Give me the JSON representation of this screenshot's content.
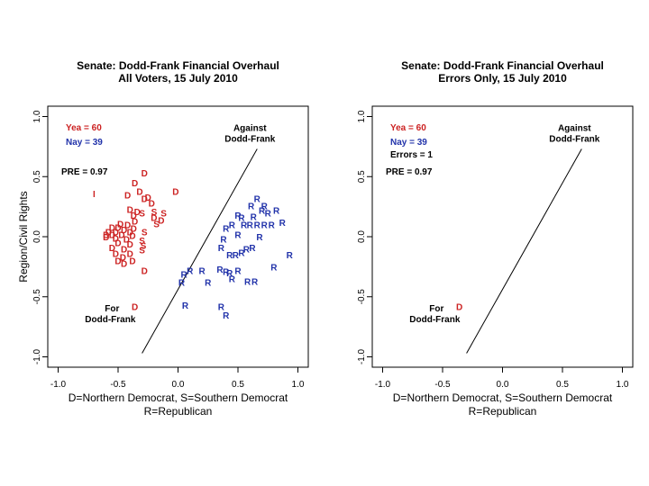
{
  "colors": {
    "dem": "#cc2222",
    "rep": "#2233aa",
    "ind": "#cc2222",
    "text": "#000000"
  },
  "chart_data": [
    {
      "type": "scatter",
      "title": "Senate: Dodd-Frank Financial Overhaul",
      "subtitle": "All Voters, 15 July 2010",
      "xlabel": "D=Northern Democrat, S=Southern Democrat",
      "xlabel2": "R=Republican",
      "ylabel": "Region/Civil Rights",
      "xlim": [
        -1.0,
        1.0
      ],
      "ylim": [
        -1.0,
        1.0
      ],
      "xticks": [
        "-1.0",
        "-0.5",
        "0.0",
        "0.5",
        "1.0"
      ],
      "yticks": [
        "-1.0",
        "-0.5",
        "0.0",
        "0.5",
        "1.0"
      ],
      "yea_text": "Yea =  60",
      "nay_text": "Nay =  39",
      "pre_text": "PRE =  0.97",
      "against_label": [
        "Against",
        "Dodd-Frank"
      ],
      "for_label": [
        "For",
        "Dodd-Frank"
      ],
      "cutline": [
        [
          -0.3,
          -0.97
        ],
        [
          0.66,
          0.73
        ]
      ],
      "points": [
        {
          "label": "I",
          "x": -0.7,
          "y": 0.36
        },
        {
          "label": "D",
          "x": -0.28,
          "y": 0.53
        },
        {
          "label": "D",
          "x": -0.36,
          "y": 0.45
        },
        {
          "label": "D",
          "x": -0.32,
          "y": 0.38
        },
        {
          "label": "D",
          "x": -0.42,
          "y": 0.35
        },
        {
          "label": "D",
          "x": -0.28,
          "y": 0.32
        },
        {
          "label": "D",
          "x": -0.25,
          "y": 0.33
        },
        {
          "label": "D",
          "x": -0.22,
          "y": 0.28
        },
        {
          "label": "D",
          "x": -0.02,
          "y": 0.38
        },
        {
          "label": "D",
          "x": -0.4,
          "y": 0.23
        },
        {
          "label": "D",
          "x": -0.34,
          "y": 0.21
        },
        {
          "label": "S",
          "x": -0.3,
          "y": 0.2
        },
        {
          "label": "S",
          "x": -0.2,
          "y": 0.21
        },
        {
          "label": "S",
          "x": -0.12,
          "y": 0.2
        },
        {
          "label": "D",
          "x": -0.37,
          "y": 0.18
        },
        {
          "label": "D",
          "x": -0.2,
          "y": 0.16
        },
        {
          "label": "D",
          "x": -0.14,
          "y": 0.14
        },
        {
          "label": "D",
          "x": -0.36,
          "y": 0.13
        },
        {
          "label": "S",
          "x": -0.18,
          "y": 0.11
        },
        {
          "label": "D",
          "x": -0.48,
          "y": 0.11
        },
        {
          "label": "D",
          "x": -0.42,
          "y": 0.1
        },
        {
          "label": "D",
          "x": -0.55,
          "y": 0.08
        },
        {
          "label": "D",
          "x": -0.5,
          "y": 0.08
        },
        {
          "label": "D",
          "x": -0.37,
          "y": 0.07
        },
        {
          "label": "D",
          "x": -0.45,
          "y": 0.06
        },
        {
          "label": "D",
          "x": -0.58,
          "y": 0.04
        },
        {
          "label": "D",
          "x": -0.52,
          "y": 0.04
        },
        {
          "label": "D",
          "x": -0.4,
          "y": 0.04
        },
        {
          "label": "S",
          "x": -0.28,
          "y": 0.04
        },
        {
          "label": "D",
          "x": -0.6,
          "y": 0.02
        },
        {
          "label": "D",
          "x": -0.55,
          "y": 0.02
        },
        {
          "label": "D",
          "x": -0.47,
          "y": 0.02
        },
        {
          "label": "D",
          "x": -0.38,
          "y": 0.01
        },
        {
          "label": "D",
          "x": -0.6,
          "y": 0.0
        },
        {
          "label": "D",
          "x": -0.52,
          "y": -0.01
        },
        {
          "label": "D",
          "x": -0.43,
          "y": -0.02
        },
        {
          "label": "S",
          "x": -0.3,
          "y": -0.03
        },
        {
          "label": "D",
          "x": -0.5,
          "y": -0.05
        },
        {
          "label": "D",
          "x": -0.4,
          "y": -0.06
        },
        {
          "label": "S",
          "x": -0.29,
          "y": -0.07
        },
        {
          "label": "D",
          "x": -0.55,
          "y": -0.09
        },
        {
          "label": "D",
          "x": -0.45,
          "y": -0.1
        },
        {
          "label": "S",
          "x": -0.3,
          "y": -0.11
        },
        {
          "label": "D",
          "x": -0.52,
          "y": -0.14
        },
        {
          "label": "D",
          "x": -0.4,
          "y": -0.14
        },
        {
          "label": "D",
          "x": -0.46,
          "y": -0.17
        },
        {
          "label": "D",
          "x": -0.5,
          "y": -0.2
        },
        {
          "label": "D",
          "x": -0.38,
          "y": -0.2
        },
        {
          "label": "D",
          "x": -0.45,
          "y": -0.22
        },
        {
          "label": "D",
          "x": -0.28,
          "y": -0.28
        },
        {
          "label": "D",
          "x": -0.36,
          "y": -0.58
        },
        {
          "label": "R",
          "x": 0.1,
          "y": -0.28
        },
        {
          "label": "R",
          "x": 0.05,
          "y": -0.31
        },
        {
          "label": "R",
          "x": 0.03,
          "y": -0.38
        },
        {
          "label": "R",
          "x": 0.2,
          "y": -0.28
        },
        {
          "label": "R",
          "x": 0.25,
          "y": -0.38
        },
        {
          "label": "R",
          "x": 0.06,
          "y": -0.57
        },
        {
          "label": "R",
          "x": 0.35,
          "y": -0.27
        },
        {
          "label": "R",
          "x": 0.4,
          "y": -0.29
        },
        {
          "label": "R",
          "x": 0.43,
          "y": -0.3
        },
        {
          "label": "R",
          "x": 0.45,
          "y": -0.35
        },
        {
          "label": "R",
          "x": 0.5,
          "y": -0.28
        },
        {
          "label": "R",
          "x": 0.58,
          "y": -0.37
        },
        {
          "label": "R",
          "x": 0.64,
          "y": -0.37
        },
        {
          "label": "R",
          "x": 0.8,
          "y": -0.25
        },
        {
          "label": "R",
          "x": 0.93,
          "y": -0.15
        },
        {
          "label": "R",
          "x": 0.36,
          "y": -0.58
        },
        {
          "label": "R",
          "x": 0.4,
          "y": -0.65
        },
        {
          "label": "R",
          "x": 0.36,
          "y": -0.09
        },
        {
          "label": "R",
          "x": 0.43,
          "y": -0.15
        },
        {
          "label": "R",
          "x": 0.48,
          "y": -0.15
        },
        {
          "label": "R",
          "x": 0.53,
          "y": -0.13
        },
        {
          "label": "R",
          "x": 0.57,
          "y": -0.1
        },
        {
          "label": "R",
          "x": 0.62,
          "y": -0.09
        },
        {
          "label": "R",
          "x": 0.38,
          "y": -0.02
        },
        {
          "label": "R",
          "x": 0.5,
          "y": 0.02
        },
        {
          "label": "R",
          "x": 0.68,
          "y": 0.0
        },
        {
          "label": "R",
          "x": 0.4,
          "y": 0.07
        },
        {
          "label": "R",
          "x": 0.45,
          "y": 0.1
        },
        {
          "label": "R",
          "x": 0.55,
          "y": 0.1
        },
        {
          "label": "R",
          "x": 0.6,
          "y": 0.1
        },
        {
          "label": "R",
          "x": 0.66,
          "y": 0.1
        },
        {
          "label": "R",
          "x": 0.72,
          "y": 0.1
        },
        {
          "label": "R",
          "x": 0.78,
          "y": 0.1
        },
        {
          "label": "R",
          "x": 0.5,
          "y": 0.18
        },
        {
          "label": "R",
          "x": 0.53,
          "y": 0.16
        },
        {
          "label": "R",
          "x": 0.63,
          "y": 0.17
        },
        {
          "label": "R",
          "x": 0.75,
          "y": 0.2
        },
        {
          "label": "R",
          "x": 0.7,
          "y": 0.22
        },
        {
          "label": "R",
          "x": 0.61,
          "y": 0.26
        },
        {
          "label": "R",
          "x": 0.72,
          "y": 0.26
        },
        {
          "label": "R",
          "x": 0.82,
          "y": 0.22
        },
        {
          "label": "R",
          "x": 0.66,
          "y": 0.32
        },
        {
          "label": "R",
          "x": 0.87,
          "y": 0.12
        }
      ]
    },
    {
      "type": "scatter",
      "title": "Senate: Dodd-Frank Financial Overhaul",
      "subtitle": "Errors Only, 15 July 2010",
      "xlabel": "D=Northern Democrat, S=Southern Democrat",
      "xlabel2": "R=Republican",
      "ylabel": "",
      "xlim": [
        -1.0,
        1.0
      ],
      "ylim": [
        -1.0,
        1.0
      ],
      "xticks": [
        "-1.0",
        "-0.5",
        "0.0",
        "0.5",
        "1.0"
      ],
      "yticks": [
        "-1.0",
        "-0.5",
        "0.0",
        "0.5",
        "1.0"
      ],
      "yea_text": "Yea =  60",
      "nay_text": "Nay =  39",
      "errors_text": "Errors =  1",
      "pre_text": "PRE =  0.97",
      "against_label": [
        "Against",
        "Dodd-Frank"
      ],
      "for_label": [
        "For",
        "Dodd-Frank"
      ],
      "cutline": [
        [
          -0.3,
          -0.97
        ],
        [
          0.66,
          0.73
        ]
      ],
      "points": [
        {
          "label": "D",
          "x": -0.36,
          "y": -0.58
        }
      ]
    }
  ]
}
